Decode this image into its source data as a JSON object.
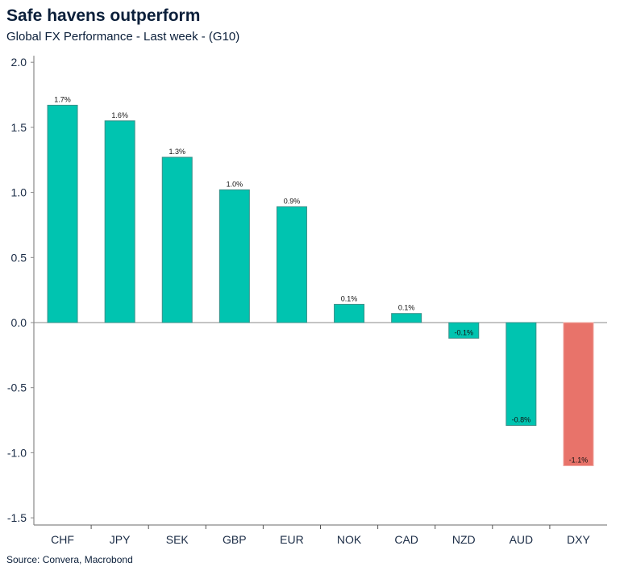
{
  "title": "Safe havens outperform",
  "subtitle": "Global FX Performance - Last week - (G10)",
  "source": "Source: Convera, Macrobond",
  "chart_data": {
    "type": "bar",
    "categories": [
      "CHF",
      "JPY",
      "SEK",
      "GBP",
      "EUR",
      "NOK",
      "CAD",
      "NZD",
      "AUD",
      "DXY"
    ],
    "values": [
      1.67,
      1.55,
      1.27,
      1.02,
      0.89,
      0.14,
      0.07,
      -0.12,
      -0.79,
      -1.1
    ],
    "data_labels": [
      "1.7%",
      "1.6%",
      "1.3%",
      "1.0%",
      "0.9%",
      "0.1%",
      "0.1%",
      "-0.1%",
      "-0.8%",
      "-1.1%"
    ],
    "colors": [
      "#00c4b0",
      "#00c4b0",
      "#00c4b0",
      "#00c4b0",
      "#00c4b0",
      "#00c4b0",
      "#00c4b0",
      "#00c4b0",
      "#00c4b0",
      "#e8736a"
    ],
    "ylim": [
      -1.55,
      2.05
    ],
    "yticks": [
      "2.0",
      "1.5",
      "1.0",
      "0.5",
      "0.0",
      "-0.5",
      "-1.0",
      "-1.5"
    ],
    "ytick_values": [
      2.0,
      1.5,
      1.0,
      0.5,
      0.0,
      -0.5,
      -1.0,
      -1.5
    ],
    "grid": false,
    "xlabel": "",
    "ylabel": ""
  }
}
